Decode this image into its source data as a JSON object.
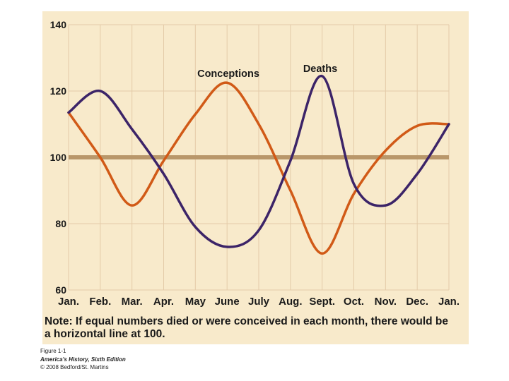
{
  "chart_data": {
    "type": "line",
    "title": "",
    "xlabel": "",
    "ylabel": "",
    "categories": [
      "Jan.",
      "Feb.",
      "Mar.",
      "Apr.",
      "May",
      "June",
      "July",
      "Aug.",
      "Sept.",
      "Oct.",
      "Nov.",
      "Dec.",
      "Jan."
    ],
    "ylim": [
      60,
      140
    ],
    "yticks": [
      60,
      80,
      100,
      120,
      140
    ],
    "series": [
      {
        "name": "Conceptions",
        "color": "#d15a17",
        "values": [
          113.5,
          100,
          85.5,
          99,
          113,
          122.5,
          110,
          90,
          71,
          89,
          102,
          109.5,
          110
        ]
      },
      {
        "name": "Deaths",
        "color": "#3c2468",
        "values": [
          113.5,
          120,
          108.5,
          95,
          79,
          73,
          78,
          99,
          124.5,
          92,
          85.5,
          95,
          110
        ]
      }
    ],
    "reference_line": {
      "value": 100,
      "color": "#b9976a"
    },
    "grid": true,
    "background": "#f8eacb",
    "gridline_color": "#e4cba8"
  },
  "note": {
    "line1": "Note: If equal numbers died or were conceived in each month, there would be",
    "line2": "a horizontal line at 100."
  },
  "caption": {
    "figure": "Figure 1-1",
    "book": "America's History, Sixth Edition",
    "copyright": "© 2008 Bedford/St. Martins"
  }
}
